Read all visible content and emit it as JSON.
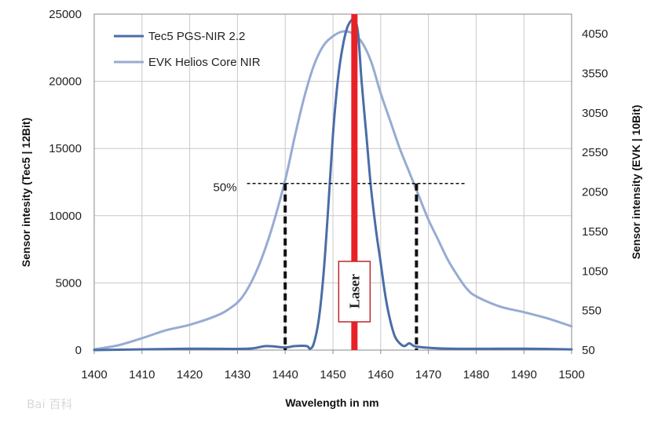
{
  "chart_data": {
    "type": "line",
    "xlabel": "Wavelength in nm",
    "ylabel_left": "Sensor intesity (Tec5 | 12Bit)",
    "ylabel_right": "Sensor intensity (EVK | 10Bit)",
    "xlim": [
      1400,
      1500
    ],
    "ylim_left": [
      0,
      25000
    ],
    "ylim_right": [
      50,
      4300
    ],
    "x_ticks": [
      1400,
      1410,
      1420,
      1430,
      1440,
      1450,
      1460,
      1470,
      1480,
      1490,
      1500
    ],
    "y_ticks_left": [
      0,
      5000,
      10000,
      15000,
      20000,
      25000
    ],
    "y_ticks_right": [
      50,
      550,
      1050,
      1550,
      2050,
      2550,
      3050,
      3550,
      4050
    ],
    "grid": true,
    "legend_position": "top-left",
    "series": [
      {
        "name": "Tec5 PGS-NIR 2.2",
        "axis": "left",
        "color": "#4a6da8",
        "x": [
          1400,
          1420,
          1432,
          1436,
          1440,
          1442,
          1444.5,
          1445.2,
          1446,
          1447,
          1448,
          1449,
          1450,
          1451,
          1452,
          1453,
          1454,
          1454.6,
          1455.3,
          1456,
          1457,
          1458,
          1459,
          1460,
          1461,
          1462,
          1463,
          1464,
          1465,
          1466,
          1467,
          1469,
          1475,
          1490,
          1500
        ],
        "y": [
          0,
          100,
          100,
          300,
          200,
          300,
          300,
          100,
          500,
          2200,
          5500,
          10500,
          16000,
          20000,
          22500,
          24000,
          24600,
          24600,
          23500,
          20000,
          16000,
          12000,
          9000,
          6500,
          4000,
          2200,
          1000,
          500,
          300,
          500,
          300,
          200,
          100,
          100,
          50
        ]
      },
      {
        "name": "EVK Helios Core NIR",
        "axis": "right",
        "color": "#97abd2",
        "x": [
          1400,
          1405,
          1410,
          1415,
          1420,
          1425,
          1428,
          1431,
          1434,
          1437,
          1440,
          1442,
          1444,
          1446,
          1448,
          1450,
          1452,
          1454,
          1456,
          1458,
          1460,
          1462,
          1464,
          1466,
          1468,
          1470,
          1472,
          1474,
          1476,
          1478,
          1480,
          1485,
          1490,
          1495,
          1500
        ],
        "y": [
          60,
          110,
          200,
          300,
          370,
          470,
          560,
          720,
          1050,
          1550,
          2200,
          2750,
          3250,
          3650,
          3900,
          4020,
          4080,
          4060,
          3950,
          3700,
          3300,
          2950,
          2600,
          2300,
          2000,
          1700,
          1450,
          1200,
          1000,
          830,
          730,
          600,
          530,
          450,
          350
        ]
      }
    ],
    "annotations": {
      "half_max_label": "50%",
      "laser_label": "Laser",
      "laser_wavelength": 1454.5,
      "half_max_y_left": 12400,
      "half_max_x_from": 1432,
      "half_max_x_to": 1478,
      "half_max_markers_x": [
        1440,
        1467.5
      ]
    }
  },
  "watermark": "Bai 百科"
}
